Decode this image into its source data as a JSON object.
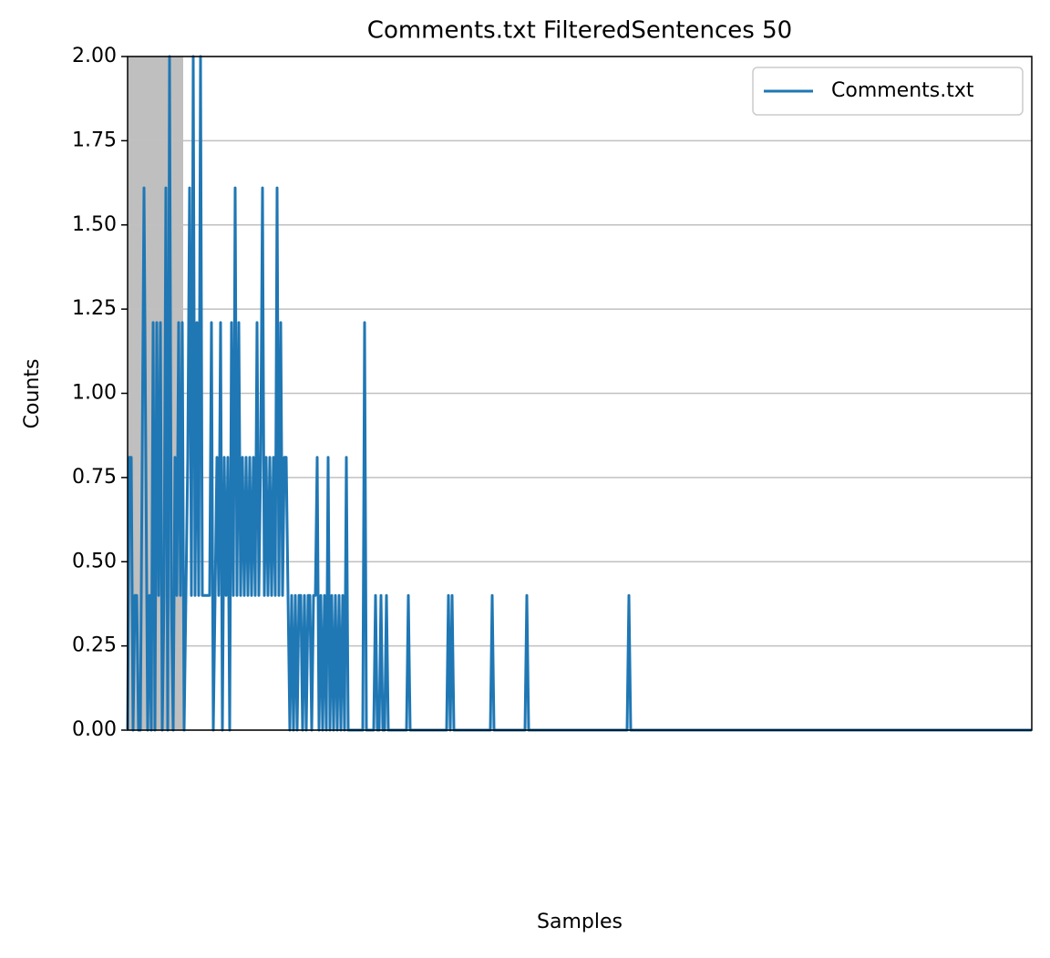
{
  "chart_data": {
    "type": "line",
    "title": "Comments.txt FilteredSentences 50",
    "x_label": "Samples",
    "y_label": "Counts",
    "xlim": [
      0,
      496
    ],
    "ylim": [
      0,
      2
    ],
    "yticks": [
      {
        "value": 0,
        "label": "0.00"
      },
      {
        "value": 0.25,
        "label": "0.25"
      },
      {
        "value": 0.5,
        "label": "0.50"
      },
      {
        "value": 0.75,
        "label": "0.75"
      },
      {
        "value": 1,
        "label": "1.00"
      },
      {
        "value": 1.25,
        "label": "1.25"
      },
      {
        "value": 1.5,
        "label": "1.50"
      },
      {
        "value": 1.75,
        "label": "1.75"
      },
      {
        "value": 2,
        "label": "2.00"
      }
    ],
    "grid": "y",
    "legend": "upper right",
    "shaded_span": [
      0,
      30.5
    ],
    "shaded_color": "#bfbfbf",
    "series": [
      {
        "name": "Comments.txt",
        "color": "#1f77b4",
        "x": [
          0,
          1,
          2,
          3,
          4,
          5,
          6,
          7,
          8,
          9,
          10,
          11,
          12,
          13,
          14,
          15,
          16,
          17,
          18,
          19,
          20,
          21,
          22,
          23,
          24,
          25,
          26,
          27,
          28,
          29,
          30,
          31,
          32,
          33,
          34,
          35,
          36,
          37,
          38,
          39,
          40,
          41,
          42,
          43,
          44,
          45,
          46,
          47,
          48,
          49,
          50,
          51,
          52,
          53,
          54,
          55,
          56,
          57,
          58,
          59,
          60,
          61,
          62,
          63,
          64,
          65,
          66,
          67,
          68,
          69,
          70,
          71,
          72,
          73,
          74,
          75,
          76,
          77,
          78,
          79,
          80,
          81,
          82,
          83,
          84,
          85,
          86,
          87,
          88,
          89,
          90,
          91,
          92,
          93,
          94,
          95,
          96,
          97,
          98,
          99,
          100,
          101,
          102,
          103,
          104,
          105,
          106,
          107,
          108,
          109,
          110,
          111,
          112,
          113,
          114,
          115,
          116,
          117,
          118,
          119,
          120,
          121,
          122,
          123,
          124,
          125,
          129,
          130,
          131,
          135,
          136,
          137,
          138,
          139,
          140,
          141,
          142,
          143,
          153,
          154,
          155,
          175,
          176,
          177,
          178,
          179,
          199,
          200,
          201,
          218,
          219,
          220,
          274,
          275,
          276,
          496
        ],
        "values": [
          0,
          0.81,
          0.81,
          0,
          0.4,
          0.4,
          0,
          0,
          0.81,
          1.61,
          0.81,
          0,
          0.4,
          0,
          1.21,
          0,
          1.21,
          0.4,
          1.21,
          0,
          0.4,
          1.61,
          0,
          2.0,
          0.4,
          0,
          0.81,
          0.4,
          1.21,
          0.4,
          1.21,
          0,
          0.4,
          0.81,
          1.61,
          0.4,
          2.0,
          0.4,
          1.21,
          0.4,
          2.0,
          0.4,
          0.4,
          0.4,
          0.4,
          0.4,
          1.21,
          0,
          0.4,
          0.81,
          0.4,
          1.21,
          0,
          0.81,
          0.4,
          0.81,
          0,
          1.21,
          0.4,
          1.61,
          0.4,
          1.21,
          0.4,
          0.81,
          0.4,
          0.81,
          0.4,
          0.81,
          0.4,
          0.81,
          0.4,
          1.21,
          0.4,
          0.81,
          1.61,
          0.4,
          0.81,
          0.4,
          0.81,
          0.4,
          0.81,
          0.4,
          1.61,
          0.4,
          1.21,
          0.4,
          0.81,
          0.81,
          0.4,
          0,
          0.4,
          0,
          0.4,
          0,
          0.4,
          0.4,
          0,
          0.4,
          0,
          0.4,
          0.4,
          0,
          0.4,
          0.4,
          0.81,
          0,
          0.4,
          0,
          0.4,
          0,
          0.81,
          0,
          0.4,
          0,
          0.4,
          0,
          0.4,
          0,
          0.4,
          0,
          0.81,
          0,
          0,
          0,
          0,
          0,
          0,
          1.21,
          0,
          0,
          0.4,
          0,
          0,
          0.4,
          0,
          0,
          0.4,
          0,
          0,
          0.4,
          0,
          0,
          0.4,
          0,
          0.4,
          0,
          0,
          0.4,
          0,
          0,
          0.4,
          0,
          0,
          0.4,
          0,
          0
        ]
      }
    ]
  }
}
